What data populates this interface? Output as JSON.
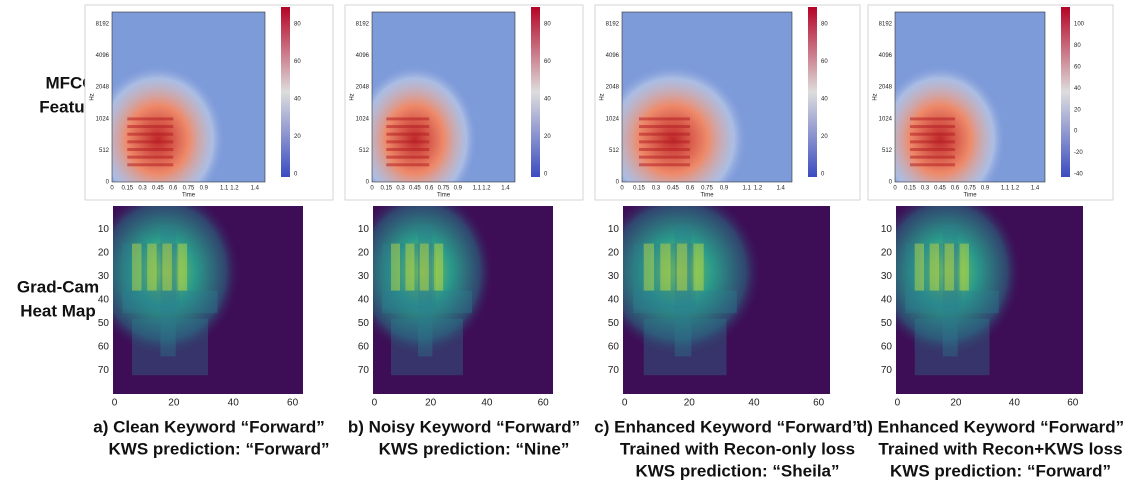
{
  "row_labels": {
    "mfcc": [
      "MFCC",
      "Feature"
    ],
    "gradcam": [
      "Grad-Cam",
      "Heat Map"
    ]
  },
  "panels": [
    {
      "mfcc": {
        "yticks": [
          0,
          512,
          1024,
          2048,
          4096,
          8192
        ],
        "xticks": [
          0,
          0.15,
          0.3,
          0.45,
          0.6,
          0.75,
          0.9,
          1.1,
          1.2,
          1.4
        ],
        "xlabel": "Time",
        "ylabel": "Hz",
        "colorbar_ticks": [
          0,
          20,
          40,
          60,
          80
        ]
      },
      "gradcam": {
        "yticks": [
          10,
          20,
          30,
          40,
          50,
          60,
          70
        ],
        "xticks": [
          0,
          20,
          40,
          60
        ]
      },
      "caption": [
        "a) Clean Keyword “Forward”",
        "KWS prediction: “Forward”"
      ]
    },
    {
      "mfcc": {
        "yticks": [
          0,
          512,
          1024,
          2048,
          4096,
          8192
        ],
        "xticks": [
          0,
          0.15,
          0.3,
          0.45,
          0.6,
          0.75,
          0.9,
          1.1,
          1.2,
          1.4
        ],
        "xlabel": "Time",
        "ylabel": "Hz",
        "colorbar_ticks": [
          0,
          20,
          40,
          60,
          80
        ]
      },
      "gradcam": {
        "yticks": [
          10,
          20,
          30,
          40,
          50,
          60,
          70
        ],
        "xticks": [
          0,
          20,
          40,
          60
        ]
      },
      "caption": [
        "b) Noisy Keyword “Forward”",
        "KWS prediction: “Nine”"
      ]
    },
    {
      "mfcc": {
        "yticks": [
          0,
          512,
          1024,
          2048,
          4096,
          8192
        ],
        "xticks": [
          0,
          0.15,
          0.3,
          0.45,
          0.6,
          0.75,
          0.9,
          1.1,
          1.2,
          1.4
        ],
        "xlabel": "Time",
        "ylabel": "Hz",
        "colorbar_ticks": [
          0,
          20,
          40,
          60,
          80
        ]
      },
      "gradcam": {
        "yticks": [
          10,
          20,
          30,
          40,
          50,
          60,
          70
        ],
        "xticks": [
          0,
          20,
          40,
          60
        ]
      },
      "caption": [
        "c) Enhanced  Keyword “Forward”",
        "Trained with Recon-only loss",
        "KWS prediction: “Sheila”"
      ]
    },
    {
      "mfcc": {
        "yticks": [
          0,
          512,
          1024,
          2048,
          4096,
          8192
        ],
        "xticks": [
          0,
          0.15,
          0.3,
          0.45,
          0.6,
          0.75,
          0.9,
          1.1,
          1.2,
          1.4
        ],
        "xlabel": "Time",
        "ylabel": "Hz",
        "colorbar_ticks": [
          -40,
          -20,
          0,
          20,
          40,
          60,
          80,
          100
        ]
      },
      "gradcam": {
        "yticks": [
          10,
          20,
          30,
          40,
          50,
          60,
          70
        ],
        "xticks": [
          0,
          20,
          40,
          60
        ]
      },
      "caption": [
        "d) Enhanced  Keyword “Forward”",
        "Trained with Recon+KWS loss",
        "KWS prediction: “Forward”"
      ]
    }
  ]
}
